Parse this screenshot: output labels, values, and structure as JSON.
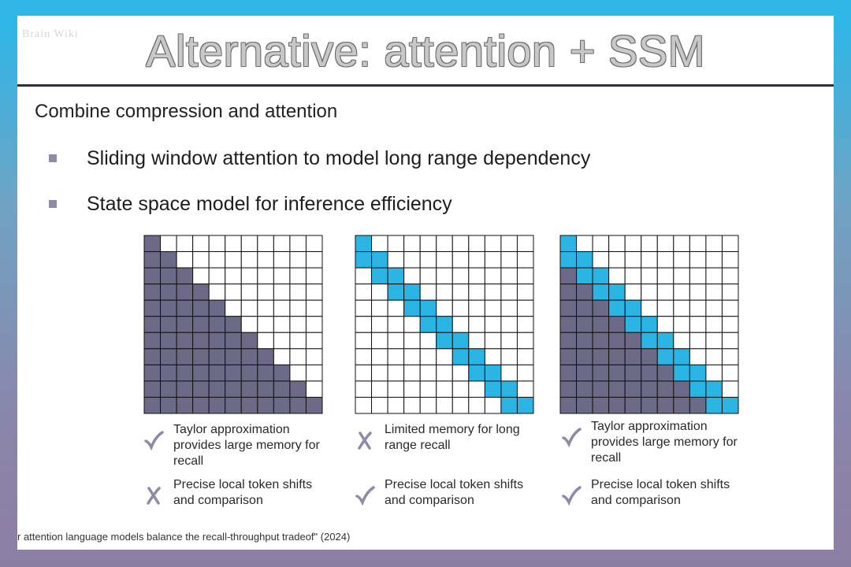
{
  "slide": {
    "top_left_mark": "Brain Wiki",
    "title": "Alternative: attention + SSM",
    "subtitle": "Combine compression and attention",
    "bullets": [
      "Sliding window attention to model long range dependency",
      "State space model for inference efficiency"
    ],
    "footer": "r attention language models balance the recall-throughput tradeof\" (2024)"
  },
  "colors": {
    "ssm_fill": "#6c6a86",
    "window_fill": "#2bb5e5",
    "empty_fill": "#ffffff",
    "grid_line": "#111111",
    "check": "#8f8aa8",
    "cross": "#8f8aa8"
  },
  "grids": [
    {
      "name": "linear-attention",
      "size": 11,
      "window": 0,
      "ssm": true,
      "captions": [
        {
          "icon": "check-icon",
          "text": [
            "Taylor approximation",
            "provides large memory for",
            "recall"
          ]
        },
        {
          "icon": "cross-icon",
          "text": [
            "Precise local token shifts",
            "and comparison"
          ]
        }
      ]
    },
    {
      "name": "sliding-window",
      "size": 11,
      "window": 2,
      "ssm": false,
      "captions": [
        {
          "icon": "cross-icon",
          "text": [
            "Limited memory for long",
            "range recall"
          ]
        },
        {
          "icon": "check-icon",
          "text": [
            "Precise local token shifts",
            "and comparison"
          ]
        }
      ]
    },
    {
      "name": "hybrid",
      "size": 11,
      "window": 2,
      "ssm": true,
      "captions": [
        {
          "icon": "check-icon",
          "text": [
            "Taylor approximation",
            "provides large memory for",
            "recall"
          ]
        },
        {
          "icon": "check-icon",
          "text": [
            "Precise local token shifts",
            "and comparison"
          ]
        }
      ]
    }
  ]
}
